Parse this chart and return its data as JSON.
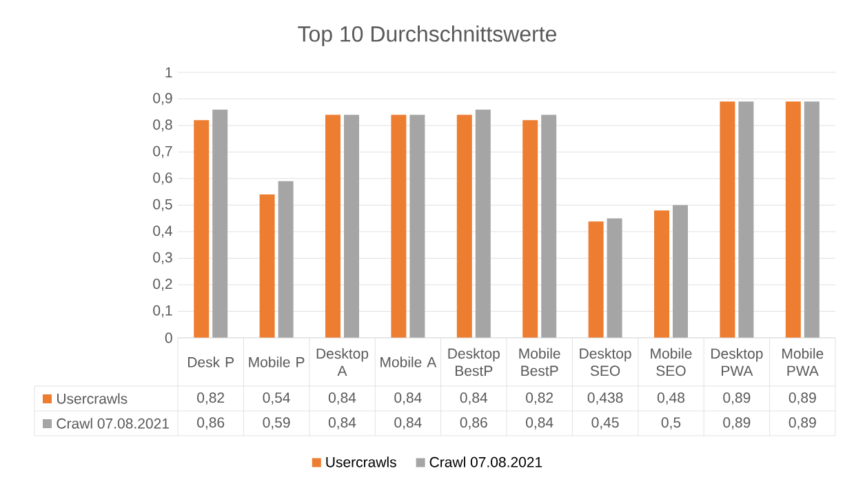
{
  "chart_data": {
    "type": "bar",
    "title": "Top 10 Durchschnittswerte",
    "categories": [
      "Desk P",
      "Mobile P",
      "Desktop A",
      "Mobile A",
      "Desktop BestP",
      "Mobile BestP",
      "Desktop SEO",
      "Mobile SEO",
      "Desktop PWA",
      "Mobile PWA"
    ],
    "series": [
      {
        "name": "Usercrawls",
        "color": "#ed7d31",
        "values": [
          0.82,
          0.54,
          0.84,
          0.84,
          0.84,
          0.82,
          0.438,
          0.48,
          0.89,
          0.89
        ],
        "value_labels": [
          "0,82",
          "0,54",
          "0,84",
          "0,84",
          "0,84",
          "0,82",
          "0,438",
          "0,48",
          "0,89",
          "0,89"
        ]
      },
      {
        "name": "Crawl 07.08.2021",
        "color": "#a5a5a5",
        "values": [
          0.86,
          0.59,
          0.84,
          0.84,
          0.86,
          0.84,
          0.45,
          0.5,
          0.89,
          0.89
        ],
        "value_labels": [
          "0,86",
          "0,59",
          "0,84",
          "0,84",
          "0,86",
          "0,84",
          "0,45",
          "0,5",
          "0,89",
          "0,89"
        ]
      }
    ],
    "ylim": [
      0,
      1
    ],
    "yticks": [
      0,
      {
        "value": 0.1,
        "label": "0,1"
      },
      {
        "value": 0.2,
        "label": "0,2"
      },
      {
        "value": 0.3,
        "label": "0,3"
      },
      {
        "value": 0.4,
        "label": "0,4"
      },
      {
        "value": 0.5,
        "label": "0,5"
      },
      {
        "value": 0.6,
        "label": "0,6"
      },
      {
        "value": 0.7,
        "label": "0,7"
      },
      {
        "value": 0.8,
        "label": "0,8"
      },
      {
        "value": 0.9,
        "label": "0,9"
      },
      1
    ],
    "grid": "y",
    "legend": "bottom"
  }
}
